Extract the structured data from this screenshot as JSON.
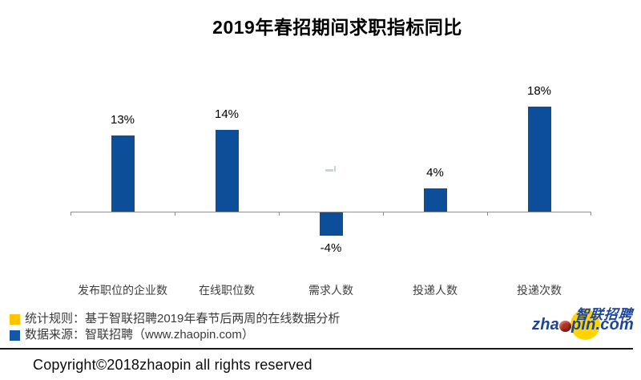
{
  "page": {
    "title": "2019年春招期间求职指标同比",
    "background": "#FFFFFF"
  },
  "chart_data": {
    "type": "bar",
    "title": "2019年春招期间求职指标同比",
    "categories": [
      "发布职位的企业数",
      "在线职位数",
      "需求人数",
      "投递人数",
      "投递次数"
    ],
    "values": [
      13,
      14,
      -4,
      4,
      18
    ],
    "value_labels": [
      "13%",
      "14%",
      "-4%",
      "4%",
      "18%"
    ],
    "unit": "%",
    "ylim": [
      -8,
      22
    ],
    "grid": false,
    "legend_position": "none",
    "bar_color": "#0D4E9B",
    "axis_color": "#8F8F8F",
    "value_label_color": "#000000",
    "category_label_color": "#3F3F3F"
  },
  "footnotes": {
    "items": [
      {
        "swatch_color": "#FFC400",
        "label": "统计规则：基于智联招聘2019年春节后两周的在线数据分析"
      },
      {
        "swatch_color": "#1257A8",
        "label": "数据来源：智联招聘（www.zhaopin.com）"
      }
    ],
    "text_color": "#3A3A3A"
  },
  "copyright": "Copyright©2018zhaopin all rights reserved",
  "logo": {
    "cn": "智联招聘",
    "en_prefix": "zha",
    "en_suffix": "pin.com",
    "blue": "#1C449B",
    "yellow": "#FFD400",
    "red": "#B5301F"
  }
}
